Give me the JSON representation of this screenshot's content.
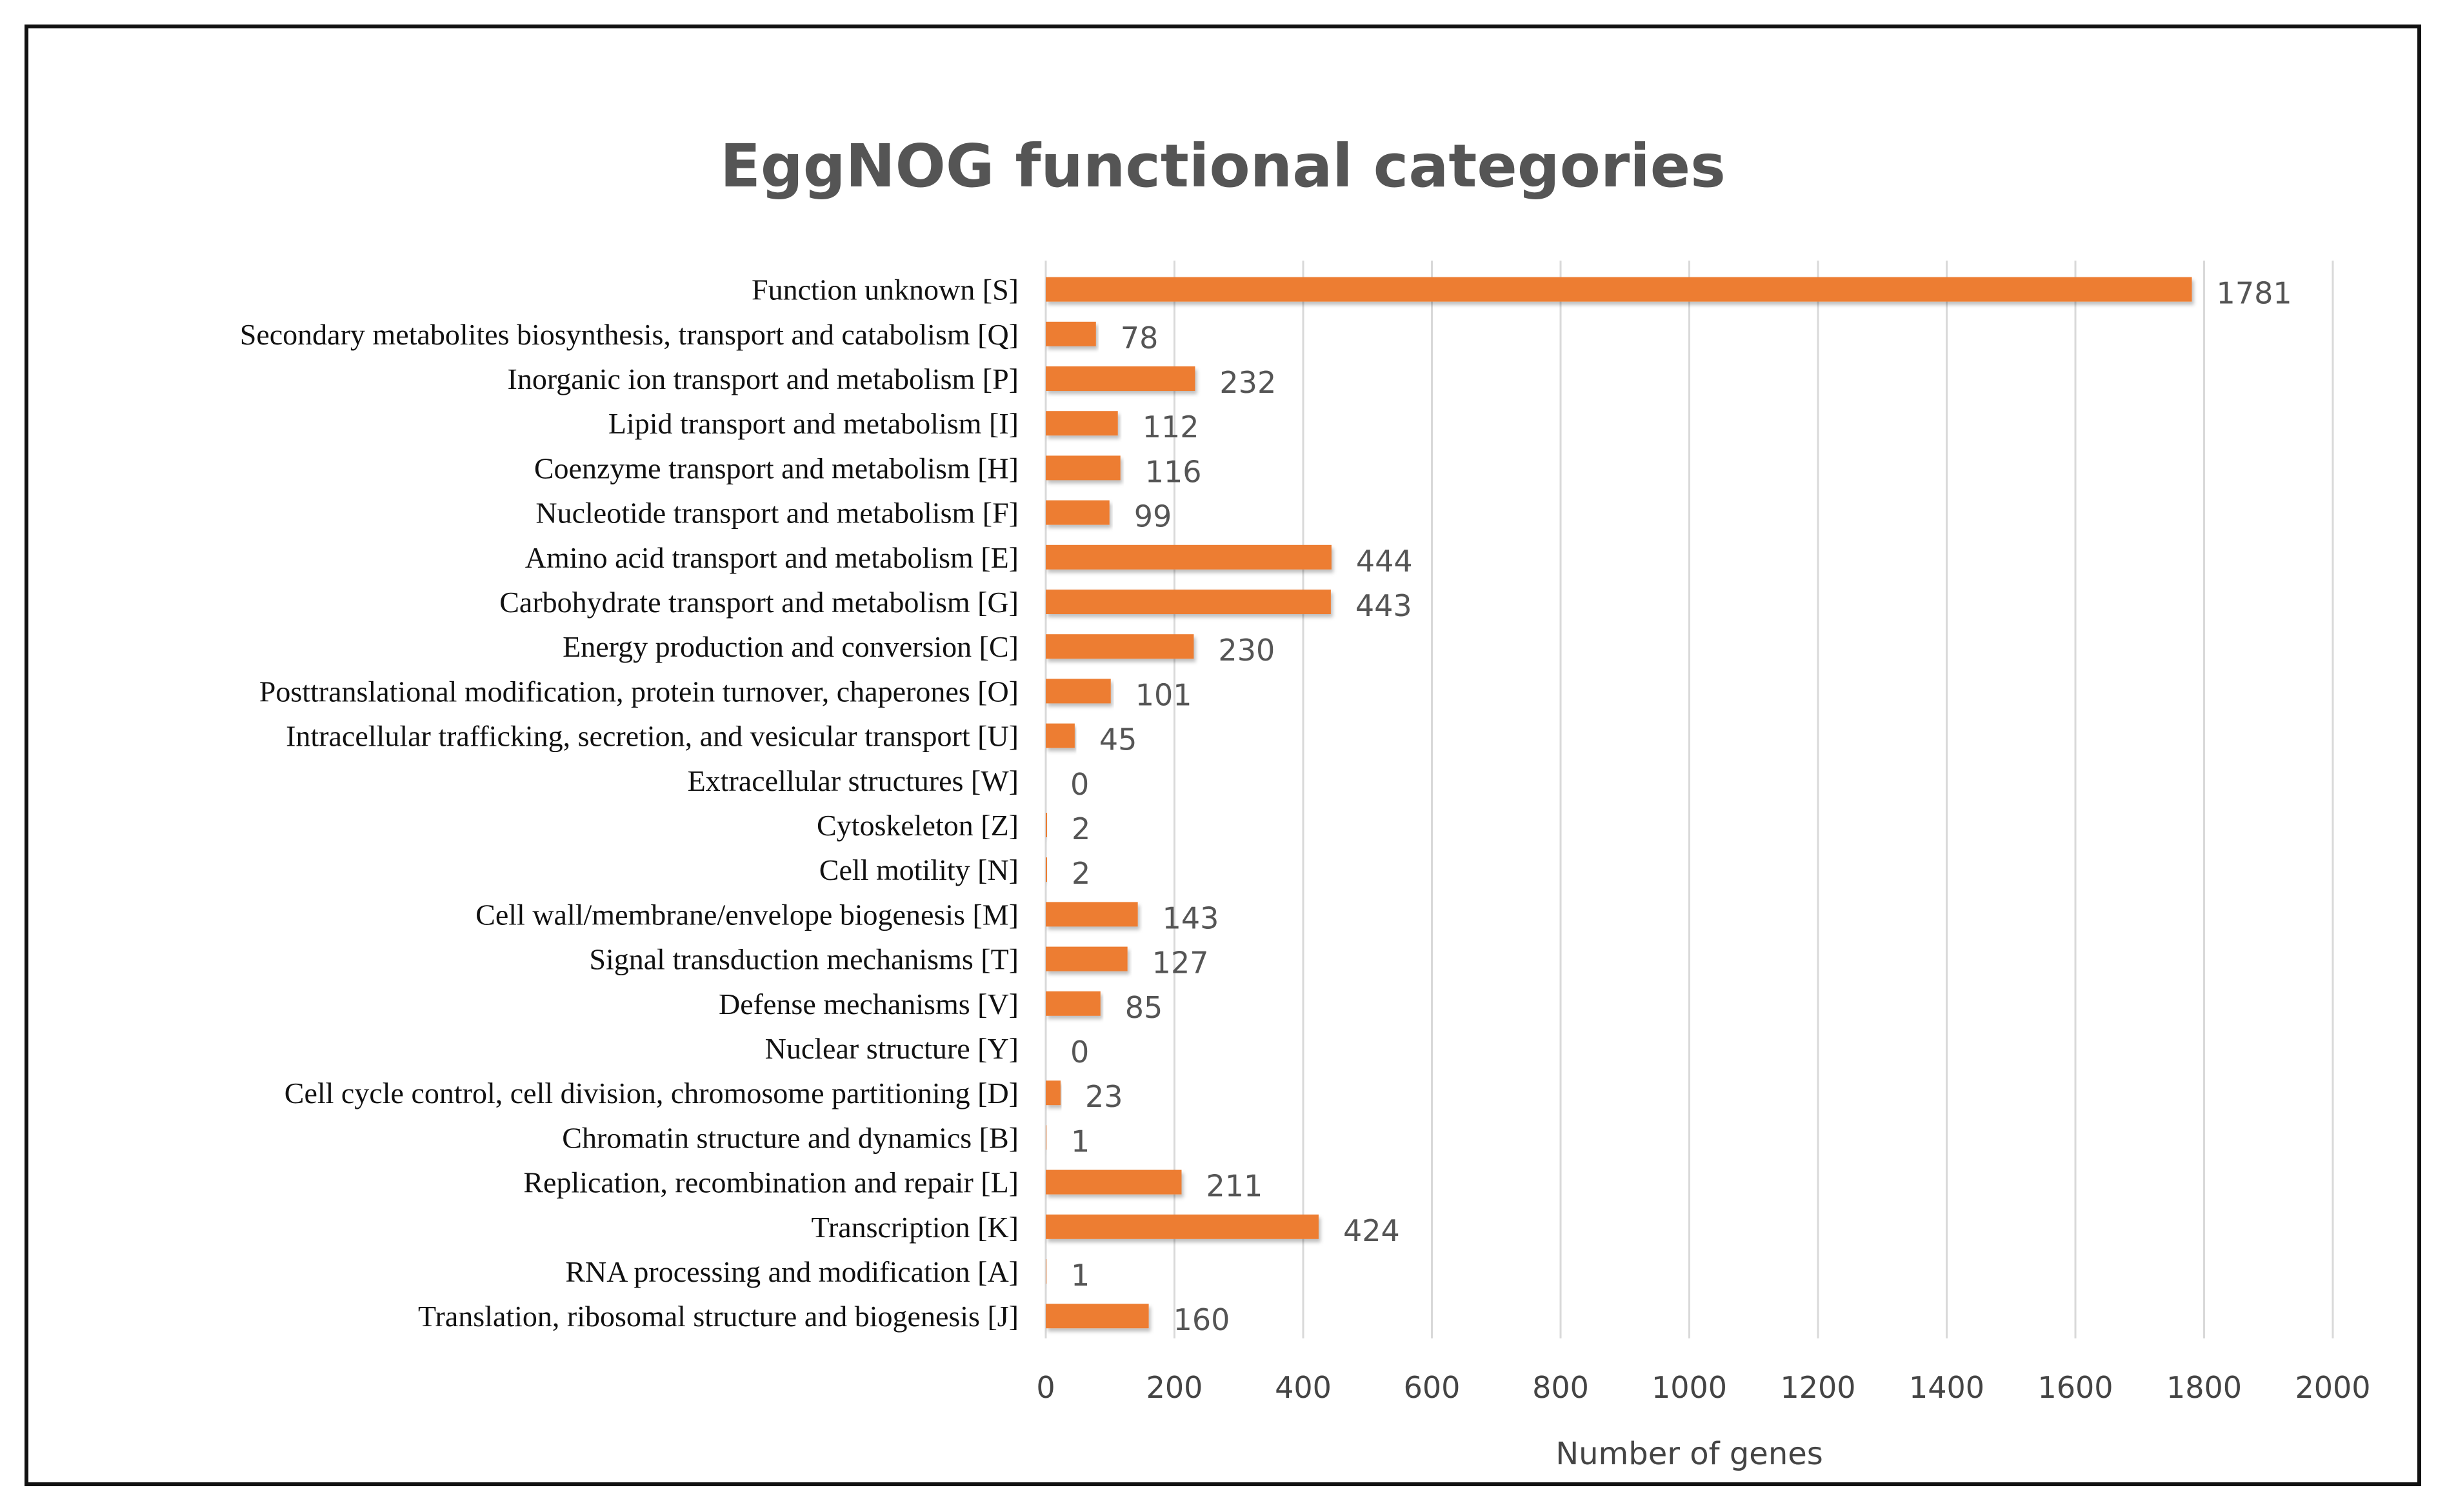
{
  "chart_data": {
    "type": "bar",
    "orientation": "horizontal",
    "title": "EggNOG functional categories",
    "xlabel": "Number of genes",
    "ylabel": "",
    "xlim": [
      0,
      2000
    ],
    "x_ticks": [
      "0",
      "200",
      "400",
      "600",
      "800",
      "1000",
      "1200",
      "1400",
      "1600",
      "1800",
      "2000"
    ],
    "grid": "vertical",
    "legend": "none",
    "bar_color": "#ED7D31",
    "categories": [
      "Function unknown [S]",
      "Secondary metabolites biosynthesis, transport and catabolism [Q]",
      "Inorganic ion transport and metabolism [P]",
      "Lipid transport and metabolism [I]",
      "Coenzyme transport and metabolism [H]",
      "Nucleotide transport and metabolism [F]",
      "Amino acid transport and metabolism [E]",
      "Carbohydrate transport and metabolism [G]",
      "Energy production and conversion [C]",
      "Posttranslational modification, protein turnover, chaperones [O]",
      "Intracellular trafficking, secretion, and vesicular transport [U]",
      "Extracellular structures [W]",
      "Cytoskeleton [Z]",
      "Cell motility [N]",
      "Cell wall/membrane/envelope biogenesis [M]",
      "Signal transduction mechanisms [T]",
      "Defense mechanisms [V]",
      "Nuclear structure [Y]",
      "Cell cycle control, cell division, chromosome partitioning [D]",
      "Chromatin structure and dynamics [B]",
      "Replication, recombination and repair [L]",
      "Transcription [K]",
      "RNA processing and modification [A]",
      "Translation, ribosomal structure and biogenesis [J]"
    ],
    "values": [
      1781,
      78,
      232,
      112,
      116,
      99,
      444,
      443,
      230,
      101,
      45,
      0,
      2,
      2,
      143,
      127,
      85,
      0,
      23,
      1,
      211,
      424,
      1,
      160
    ]
  }
}
